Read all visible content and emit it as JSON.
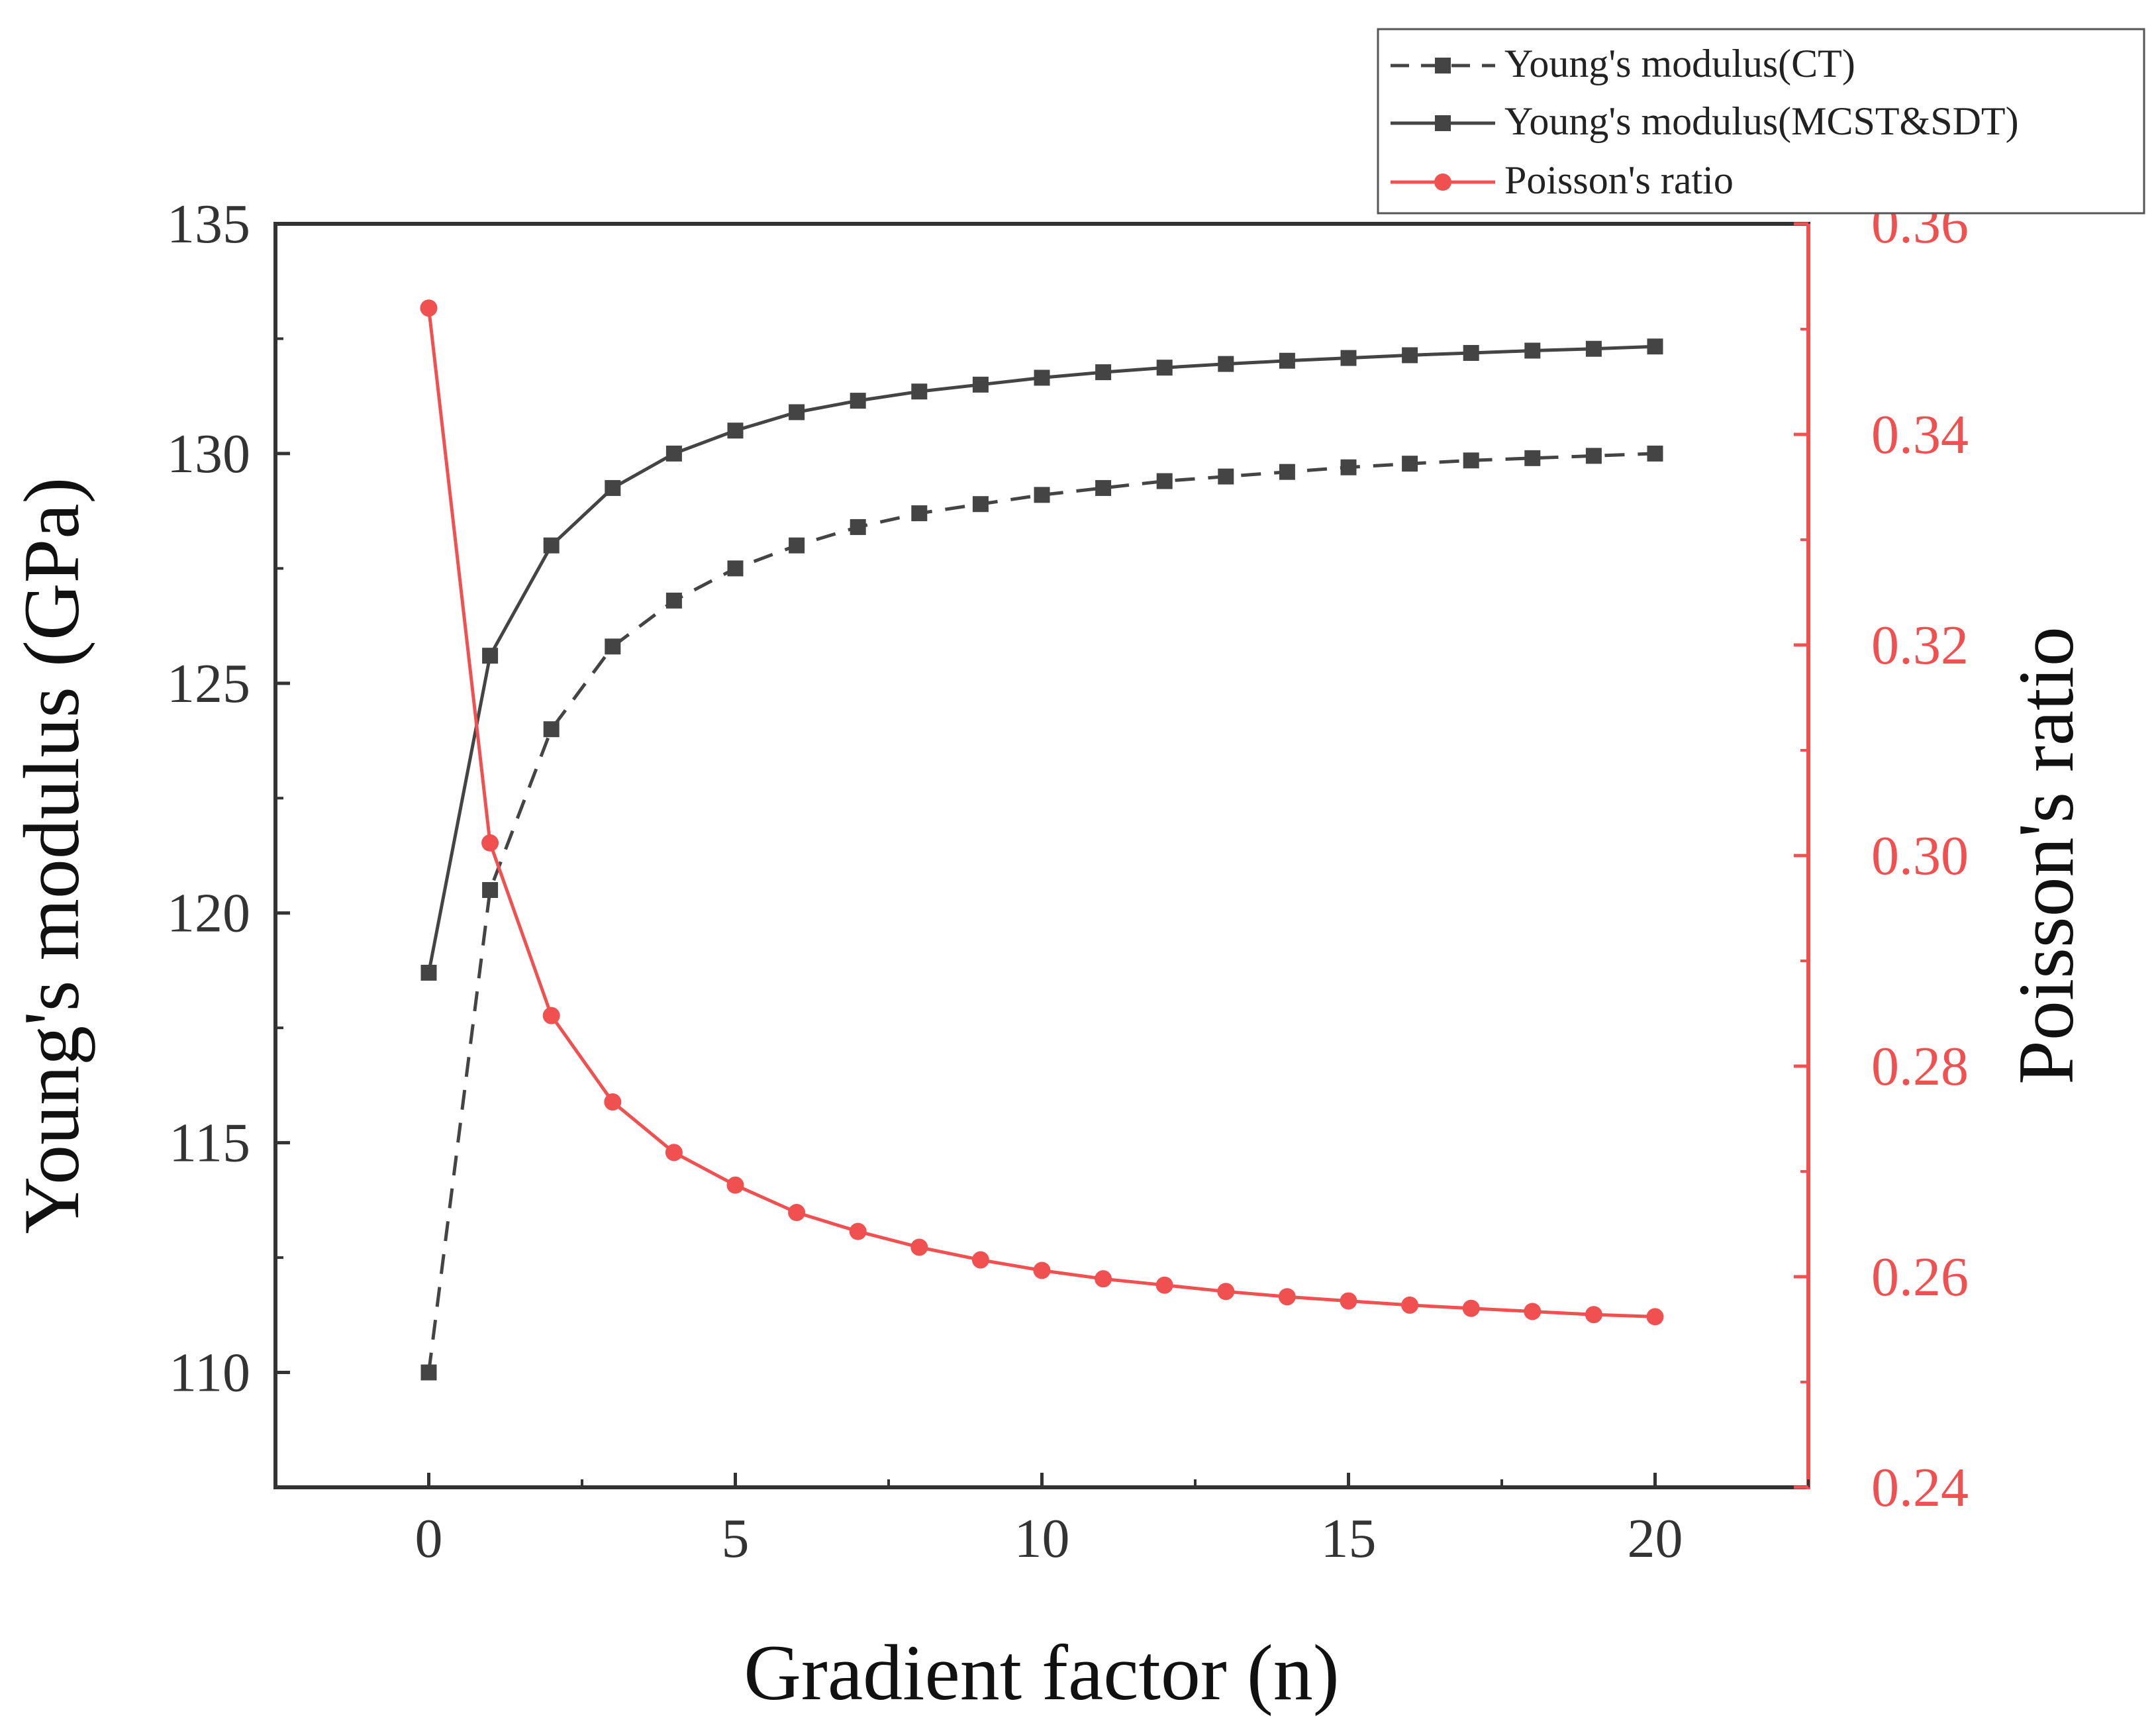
{
  "chart_data": {
    "type": "line",
    "title": "",
    "xlabel": "Gradient factor (n)",
    "ylabel": "Young's modulus (GPa)",
    "ylabel_right": "Poisson's ratio",
    "xlim": [
      -2.5,
      22.5
    ],
    "ylim": [
      107.5,
      135
    ],
    "ylim_right": [
      0.24,
      0.36
    ],
    "x_ticks": [
      0,
      5,
      10,
      15,
      20
    ],
    "x_tick_labels": [
      "0",
      "5",
      "10",
      "15",
      "20"
    ],
    "y_ticks": [
      110,
      115,
      120,
      125,
      130,
      135
    ],
    "y_tick_labels": [
      "110",
      "115",
      "120",
      "125",
      "130",
      "135"
    ],
    "y_ticks_right": [
      0.24,
      0.26,
      0.28,
      0.3,
      0.32,
      0.34,
      0.36
    ],
    "y_tick_labels_right": [
      "0.24",
      "0.26",
      "0.28",
      "0.30",
      "0.32",
      "0.34",
      "0.36"
    ],
    "grid": false,
    "legend_position": "top-right",
    "x": [
      0,
      1,
      2,
      3,
      4,
      5,
      6,
      7,
      8,
      9,
      10,
      11,
      12,
      13,
      14,
      15,
      16,
      17,
      18,
      19,
      20
    ],
    "series": [
      {
        "name": "Young's modulus(CT)",
        "axis": "left",
        "style": "dashed",
        "marker": "square",
        "color": "#444444",
        "values": [
          110.0,
          120.5,
          124.0,
          125.8,
          126.8,
          127.5,
          128.0,
          128.4,
          128.7,
          128.9,
          129.1,
          129.25,
          129.4,
          129.5,
          129.6,
          129.7,
          129.78,
          129.85,
          129.9,
          129.95,
          130.0
        ]
      },
      {
        "name": "Young's modulus(MCST&SDT)",
        "axis": "left",
        "style": "solid",
        "marker": "square",
        "color": "#444444",
        "values": [
          118.7,
          125.6,
          128.0,
          129.25,
          130.0,
          130.5,
          130.9,
          131.15,
          131.35,
          131.5,
          131.65,
          131.77,
          131.87,
          131.95,
          132.02,
          132.08,
          132.14,
          132.19,
          132.24,
          132.28,
          132.33
        ]
      },
      {
        "name": "Poisson's ratio",
        "axis": "right",
        "style": "solid",
        "marker": "circle",
        "color": "#f05050",
        "values": [
          0.352,
          0.3012,
          0.2848,
          0.2766,
          0.2718,
          0.2687,
          0.2661,
          0.2643,
          0.2628,
          0.2616,
          0.2606,
          0.2598,
          0.2592,
          0.2586,
          0.2581,
          0.2577,
          0.2573,
          0.257,
          0.2567,
          0.2564,
          0.2562
        ]
      }
    ]
  },
  "colors": {
    "axis_left": "#333333",
    "axis_right": "#f05050",
    "text": "#333333"
  }
}
